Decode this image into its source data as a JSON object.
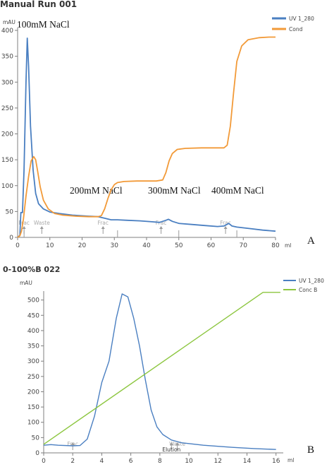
{
  "chart_data": [
    {
      "type": "line",
      "title": "Manual Run  001",
      "panel_label": "A",
      "ylabel": "mAU",
      "xlabel": "ml",
      "xlim": [
        0,
        80
      ],
      "ylim": [
        0,
        400
      ],
      "xticks": [
        0,
        10,
        20,
        30,
        40,
        50,
        60,
        70,
        80
      ],
      "yticks": [
        0,
        50,
        100,
        150,
        200,
        250,
        300,
        350,
        400
      ],
      "legend_position": "top-right",
      "series": [
        {
          "name": "UV 1_280",
          "color": "#4a7fc1",
          "points": [
            [
              0,
              0
            ],
            [
              0.7,
              4
            ],
            [
              1.0,
              48
            ],
            [
              1.5,
              48
            ],
            [
              2.0,
              130
            ],
            [
              2.6,
              300
            ],
            [
              3.0,
              385
            ],
            [
              3.4,
              330
            ],
            [
              4.0,
              215
            ],
            [
              4.8,
              130
            ],
            [
              5.6,
              85
            ],
            [
              6.5,
              65
            ],
            [
              8,
              55
            ],
            [
              10,
              49
            ],
            [
              13,
              46
            ],
            [
              17,
              43
            ],
            [
              22,
              41
            ],
            [
              25,
              40
            ],
            [
              27,
              37
            ],
            [
              29,
              34
            ],
            [
              31,
              34
            ],
            [
              34,
              33
            ],
            [
              38,
              32
            ],
            [
              42,
              30
            ],
            [
              44,
              29
            ],
            [
              46,
              33
            ],
            [
              46.8,
              35
            ],
            [
              48,
              31
            ],
            [
              50,
              27
            ],
            [
              54,
              25
            ],
            [
              58,
              23
            ],
            [
              62,
              21
            ],
            [
              64,
              22
            ],
            [
              65.5,
              27
            ],
            [
              66.5,
              22
            ],
            [
              68,
              20
            ],
            [
              72,
              17
            ],
            [
              76,
              14
            ],
            [
              80,
              12
            ]
          ]
        },
        {
          "name": "Cond",
          "color": "#f29a38",
          "points": [
            [
              0,
              0
            ],
            [
              0.7,
              3
            ],
            [
              1.2,
              12
            ],
            [
              1.8,
              35
            ],
            [
              2.6,
              80
            ],
            [
              3.4,
              118
            ],
            [
              4.2,
              148
            ],
            [
              5.0,
              156
            ],
            [
              5.6,
              150
            ],
            [
              6.2,
              128
            ],
            [
              7.0,
              98
            ],
            [
              8.0,
              72
            ],
            [
              9.5,
              55
            ],
            [
              11.5,
              46
            ],
            [
              14,
              43
            ],
            [
              18,
              41
            ],
            [
              22,
              40
            ],
            [
              25,
              40
            ],
            [
              26,
              42
            ],
            [
              27,
              55
            ],
            [
              28,
              75
            ],
            [
              29,
              92
            ],
            [
              30,
              102
            ],
            [
              31,
              106
            ],
            [
              33,
              108
            ],
            [
              37,
              109
            ],
            [
              43,
              109
            ],
            [
              45,
              111
            ],
            [
              46,
              125
            ],
            [
              47,
              148
            ],
            [
              48,
              162
            ],
            [
              49.5,
              170
            ],
            [
              52,
              172
            ],
            [
              57,
              173
            ],
            [
              64,
              173
            ],
            [
              65,
              178
            ],
            [
              66,
              215
            ],
            [
              67,
              280
            ],
            [
              68,
              340
            ],
            [
              69.5,
              370
            ],
            [
              71.5,
              382
            ],
            [
              75,
              386
            ],
            [
              78,
              387
            ],
            [
              80,
              387
            ]
          ]
        }
      ],
      "annotations": [
        "100mM NaCl",
        "200mM NaCl",
        "300mM  NaCl",
        "400mM NaCl"
      ],
      "markers": [
        {
          "label": "Frac",
          "x": 2
        },
        {
          "label": "Waste",
          "x": 7.5
        },
        {
          "label": "Frac",
          "x": 26.5
        },
        {
          "label": "Frac",
          "x": 44.5
        },
        {
          "label": "Frac",
          "x": 64.5
        }
      ]
    },
    {
      "type": "line",
      "title": "0-100%B 022",
      "panel_label": "B",
      "ylabel": "mAU",
      "xlabel": "ml",
      "xlim": [
        0,
        16.5
      ],
      "ylim": [
        0,
        520
      ],
      "xticks": [
        0,
        2,
        4,
        6,
        8,
        10,
        12,
        14,
        16
      ],
      "yticks": [
        0,
        50,
        100,
        150,
        200,
        250,
        300,
        350,
        400,
        450,
        500
      ],
      "legend_position": "top-right",
      "series": [
        {
          "name": "UV 1_280",
          "color": "#4a7fc1",
          "points": [
            [
              0,
              25
            ],
            [
              0.5,
              27
            ],
            [
              1,
              25
            ],
            [
              2,
              23
            ],
            [
              2.5,
              24
            ],
            [
              3,
              45
            ],
            [
              3.5,
              120
            ],
            [
              4,
              230
            ],
            [
              4.5,
              300
            ],
            [
              5.0,
              440
            ],
            [
              5.4,
              520
            ],
            [
              5.8,
              510
            ],
            [
              6.2,
              440
            ],
            [
              6.6,
              350
            ],
            [
              7.0,
              240
            ],
            [
              7.4,
              140
            ],
            [
              7.8,
              85
            ],
            [
              8.2,
              60
            ],
            [
              8.8,
              42
            ],
            [
              9.5,
              33
            ],
            [
              11,
              25
            ],
            [
              13,
              18
            ],
            [
              14.5,
              14
            ],
            [
              16,
              11
            ]
          ]
        },
        {
          "name": "Conc B",
          "color": "#8cc63f",
          "points": [
            [
              0,
              28
            ],
            [
              15.1,
              525
            ],
            [
              16.3,
              525
            ]
          ]
        }
      ],
      "markers": [
        {
          "label": "Frac",
          "x": 2
        },
        {
          "label": "Elution",
          "x": 8.8
        },
        {
          "label": "Waste",
          "x": 9.2
        }
      ]
    }
  ]
}
